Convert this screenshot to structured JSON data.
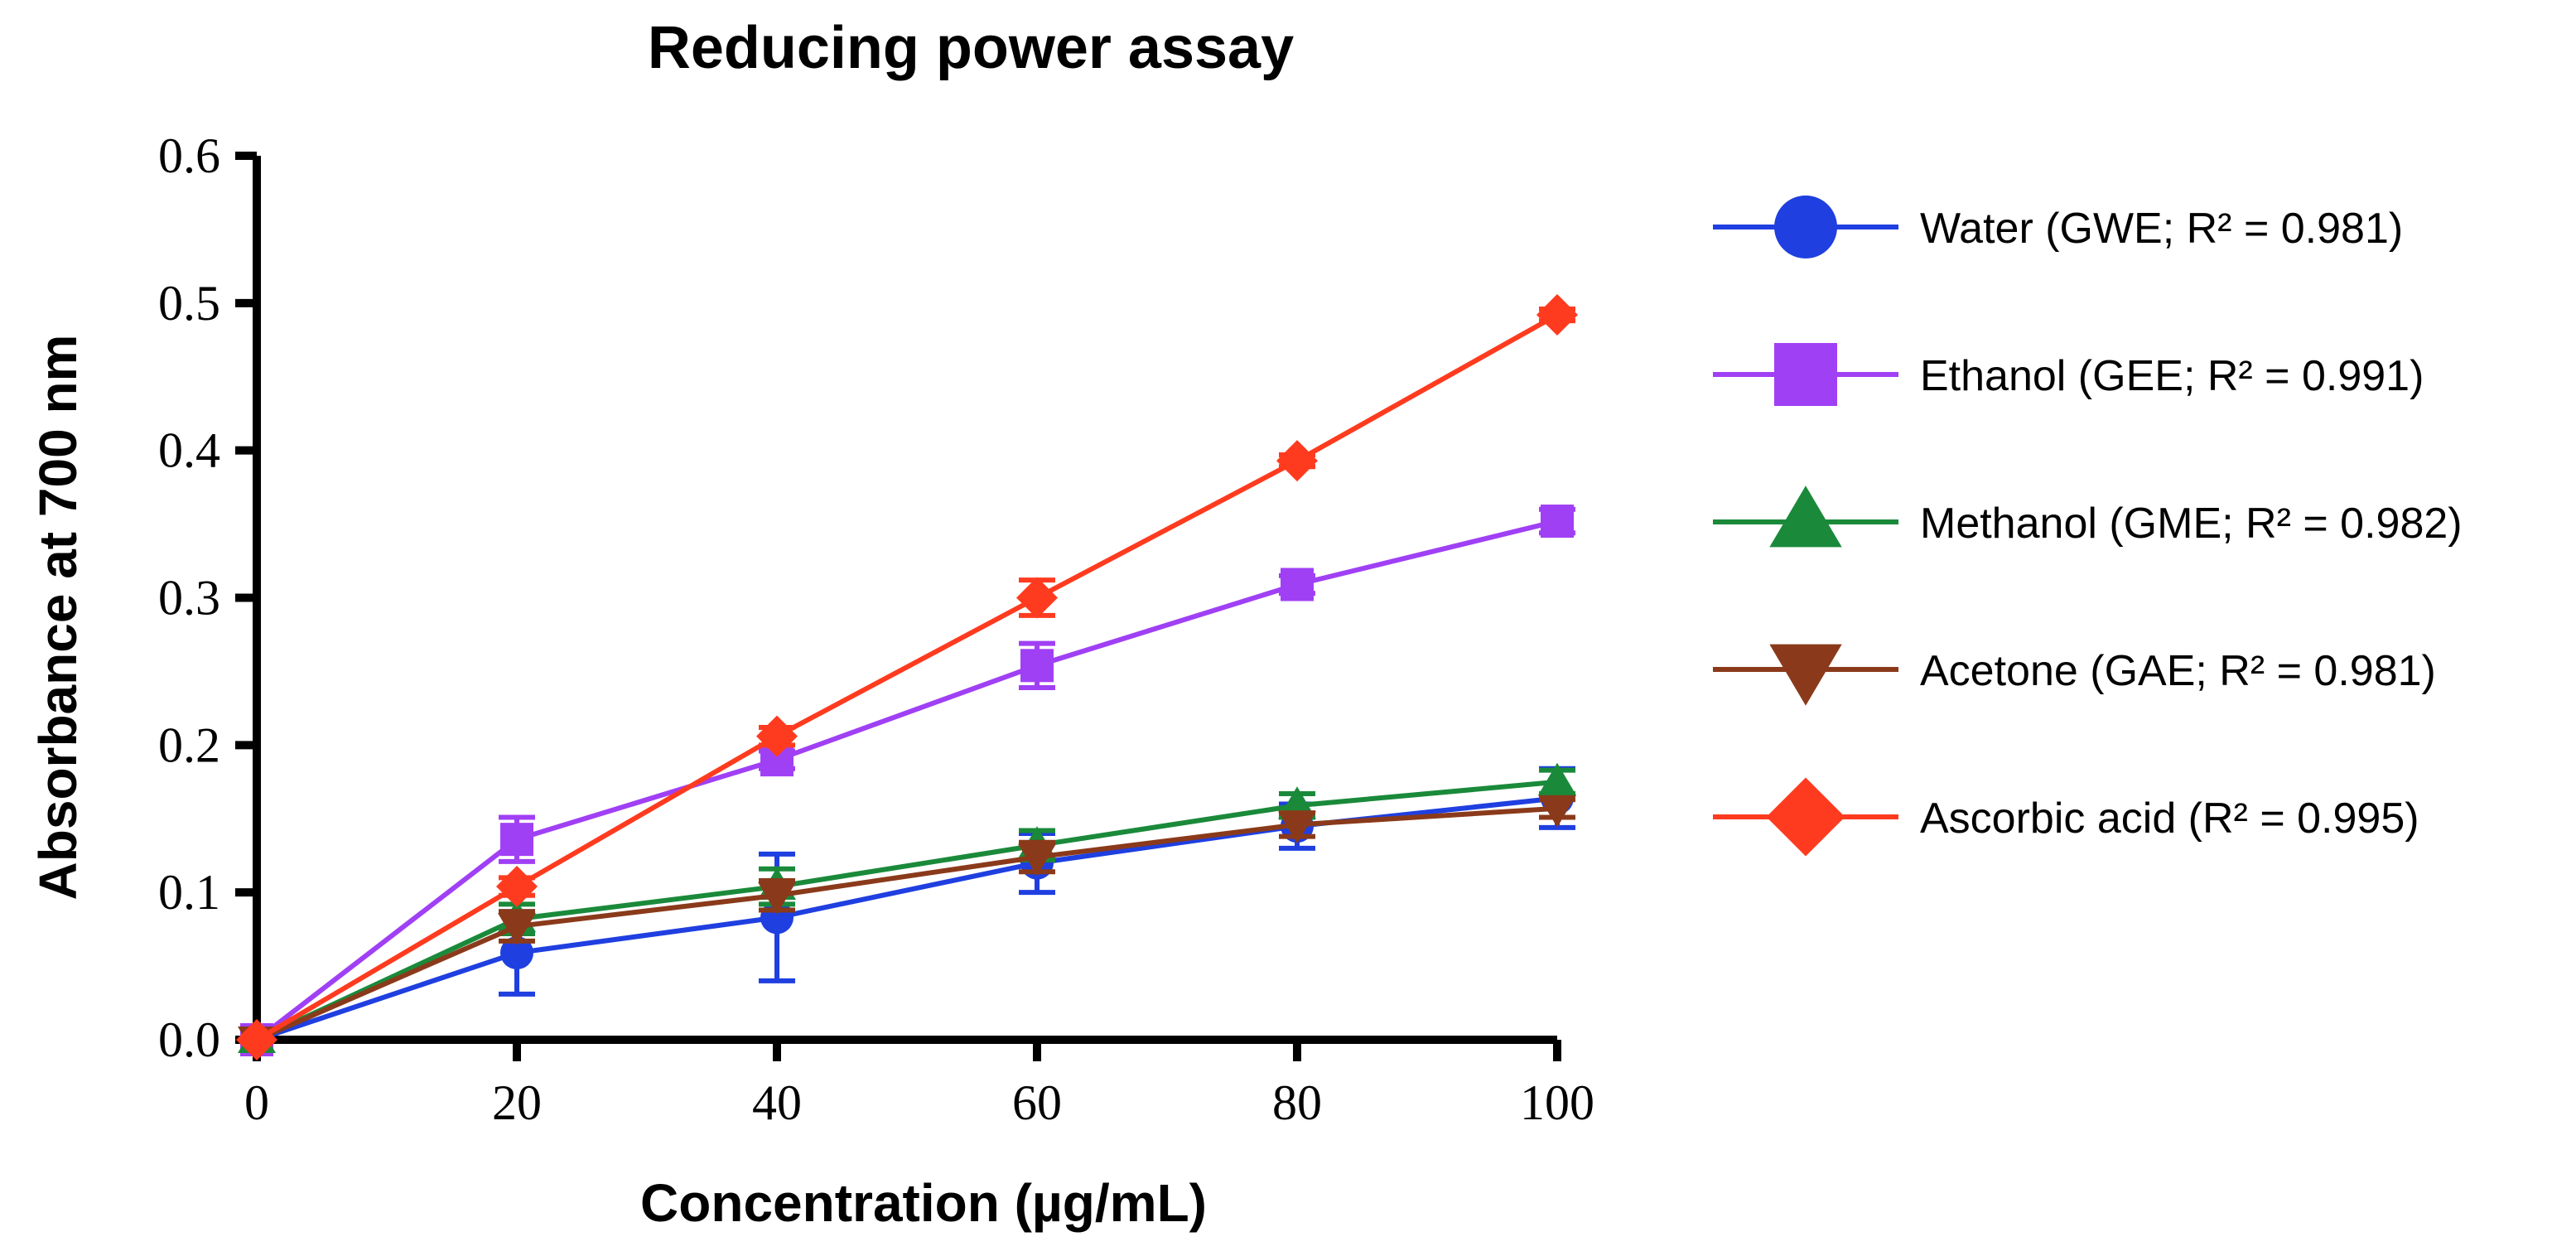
{
  "chart_data": {
    "type": "line",
    "title": "Reducing power assay",
    "xlabel": "Concentration (µg/mL)",
    "ylabel": "Absorbance at 700 nm",
    "x": [
      0,
      20,
      40,
      60,
      80,
      100
    ],
    "xticks": [
      "0",
      "20",
      "40",
      "60",
      "80",
      "100"
    ],
    "yticks": [
      "0.0",
      "0.1",
      "0.2",
      "0.3",
      "0.4",
      "0.5",
      "0.6"
    ],
    "xlim": [
      0,
      100
    ],
    "ylim": [
      0,
      0.6
    ],
    "grid": false,
    "legend_position": "right",
    "series": [
      {
        "name": "Water (GWE; R² = 0.981)",
        "color": "#1f3fe0",
        "marker": "circle",
        "values": [
          0.0,
          0.059,
          0.083,
          0.12,
          0.145,
          0.164
        ],
        "errors": [
          0.0,
          0.028,
          0.043,
          0.02,
          0.015,
          0.02
        ]
      },
      {
        "name": "Ethanol (GEE; R² = 0.991)",
        "color": "#a040f5",
        "marker": "square",
        "values": [
          0.0,
          0.136,
          0.19,
          0.254,
          0.309,
          0.352
        ],
        "errors": [
          0.0,
          0.015,
          0.006,
          0.015,
          0.006,
          0.008
        ]
      },
      {
        "name": "Methanol (GME; R² = 0.982)",
        "color": "#1a8a3a",
        "marker": "triangle-up",
        "values": [
          0.0,
          0.082,
          0.104,
          0.132,
          0.159,
          0.175
        ],
        "errors": [
          0.0,
          0.01,
          0.012,
          0.01,
          0.008,
          0.008
        ]
      },
      {
        "name": "Acetone (GAE; R² = 0.981)",
        "color": "#8a3a1a",
        "marker": "triangle-down",
        "values": [
          0.0,
          0.077,
          0.098,
          0.124,
          0.146,
          0.157
        ],
        "errors": [
          0.0,
          0.01,
          0.01,
          0.01,
          0.008,
          0.006
        ]
      },
      {
        "name": "Ascorbic acid (R² = 0.995)",
        "color": "#ff3b1f",
        "marker": "diamond",
        "values": [
          0.0,
          0.104,
          0.206,
          0.3,
          0.393,
          0.492
        ],
        "errors": [
          0.0,
          0.006,
          0.006,
          0.012,
          0.004,
          0.004
        ]
      }
    ]
  }
}
